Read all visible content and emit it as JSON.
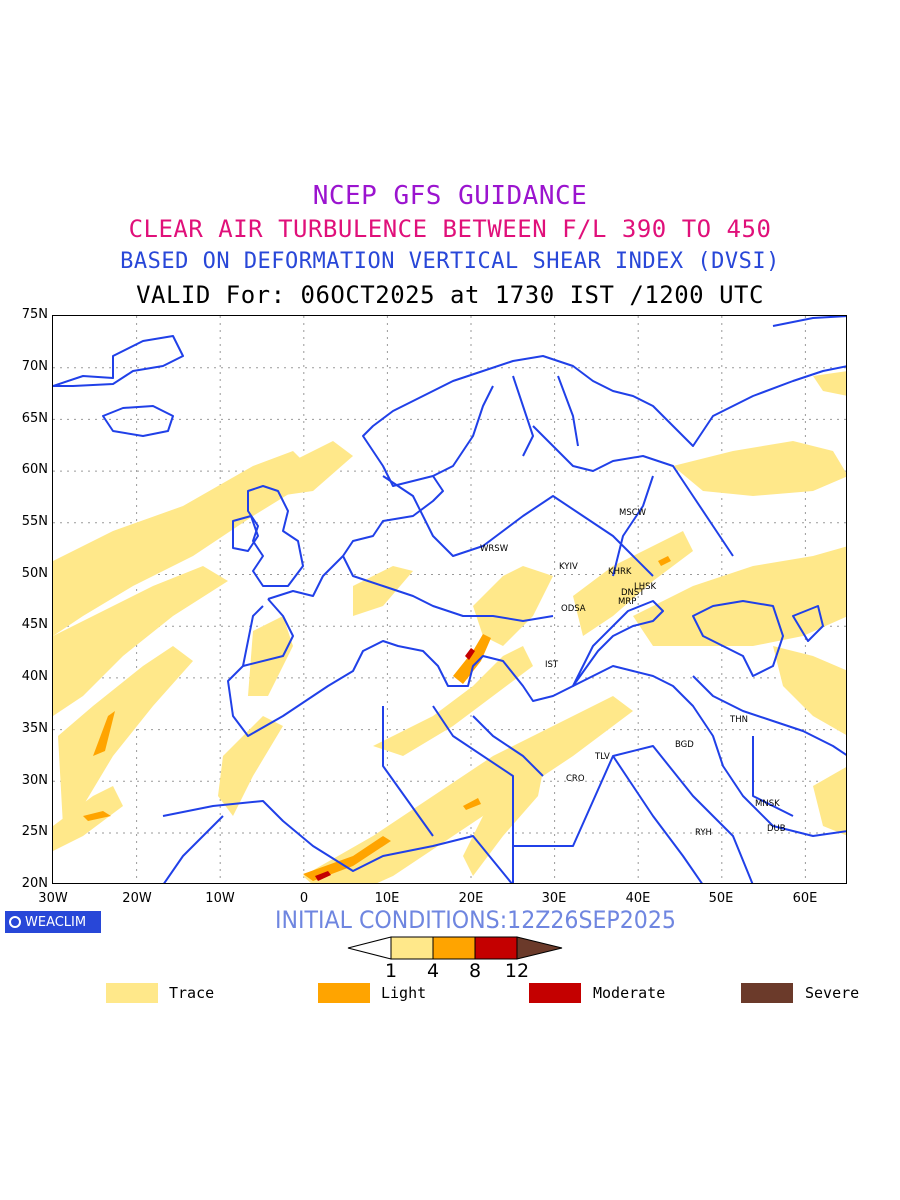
{
  "titles": {
    "line1": "NCEP GFS GUIDANCE",
    "line2": "CLEAR AIR TURBULENCE BETWEEN F/L 390 TO 450",
    "line3": "BASED ON DEFORMATION VERTICAL SHEAR INDEX (DVSI)",
    "line4": "VALID For: 06OCT2025 at 1730 IST /1200 UTC"
  },
  "colors": {
    "line1": "#9b14cf",
    "line2": "#e0107a",
    "line3": "#2847d8",
    "line4": "#000000",
    "coast": "#2040e8",
    "trace": "#ffe88a",
    "light": "#ffa400",
    "moderate": "#c40000",
    "severe": "#6b3a2a",
    "init": "#6f86e0"
  },
  "axes": {
    "lat_labels": [
      "75N",
      "70N",
      "65N",
      "60N",
      "55N",
      "50N",
      "45N",
      "40N",
      "35N",
      "30N",
      "25N",
      "20N"
    ],
    "lon_labels": [
      "30W",
      "20W",
      "10W",
      "0",
      "10E",
      "20E",
      "30E",
      "40E",
      "50E",
      "60E"
    ]
  },
  "cities": [
    {
      "name": "MSCW"
    },
    {
      "name": "WRSW"
    },
    {
      "name": "KYIV"
    },
    {
      "name": "KHRK"
    },
    {
      "name": "LHSK"
    },
    {
      "name": "DNST"
    },
    {
      "name": "MRP"
    },
    {
      "name": "ODSA"
    },
    {
      "name": "IST"
    },
    {
      "name": "THN"
    },
    {
      "name": "BGD"
    },
    {
      "name": "TLV"
    },
    {
      "name": "CRO"
    },
    {
      "name": "MNSK"
    },
    {
      "name": "DUB"
    },
    {
      "name": "RYH"
    }
  ],
  "logo": "WEACLIM",
  "initial_conditions": "INITIAL CONDITIONS:12Z26SEP2025",
  "colorbar_ticks": [
    "1",
    "4",
    "8",
    "12"
  ],
  "legend": [
    {
      "label": "Trace"
    },
    {
      "label": "Light"
    },
    {
      "label": "Moderate"
    },
    {
      "label": "Severe"
    }
  ]
}
